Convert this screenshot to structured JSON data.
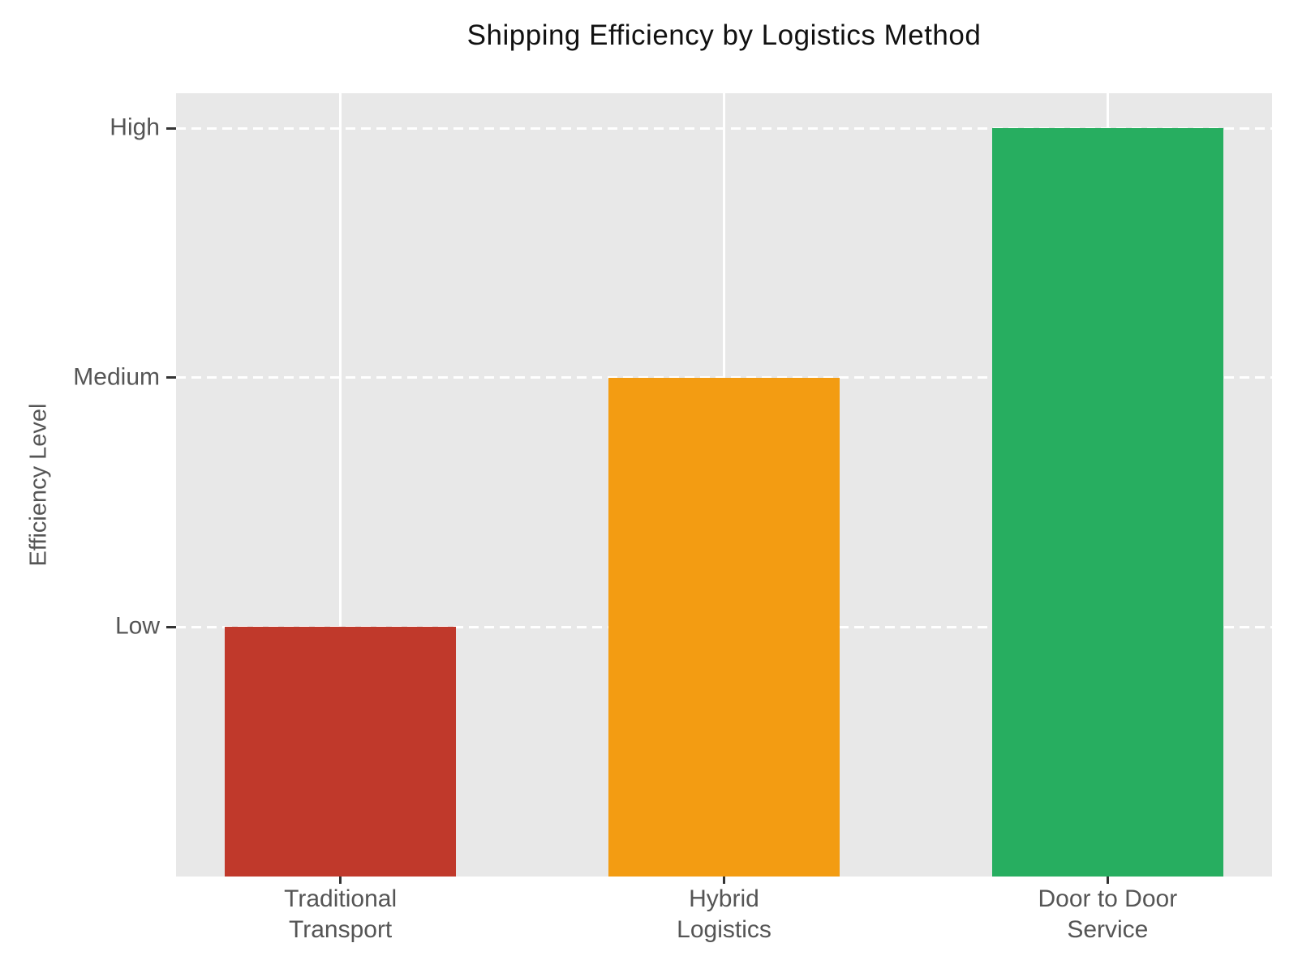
{
  "chart_data": {
    "type": "bar",
    "title": "Shipping Efficiency by Logistics Method",
    "xlabel": "",
    "ylabel": "Efficiency Level",
    "categories": [
      "Traditional\nTransport",
      "Hybrid\nLogistics",
      "Door to Door\nService"
    ],
    "values": [
      1,
      2,
      3
    ],
    "value_labels": [
      "Low",
      "Medium",
      "High"
    ],
    "ytick_values": [
      1,
      2,
      3
    ],
    "ytick_labels": [
      "Low",
      "Medium",
      "High"
    ],
    "ylim": [
      0,
      3.14
    ],
    "bar_colors": [
      "#c0392b",
      "#f39c12",
      "#27ae60"
    ],
    "grid": "on",
    "legend": "none",
    "layout": {
      "plot_background": "#e8e8e8",
      "grid_color": "#ffffff",
      "tick_mark_color": "#333333",
      "tick_label_color": "#555555",
      "title_color": "#111111",
      "x_centers_pct": [
        15.0,
        50.0,
        85.0
      ],
      "bar_width_pct": 21.1,
      "horizontal_grid_style": "dashed",
      "vertical_grid_style": "solid"
    }
  }
}
